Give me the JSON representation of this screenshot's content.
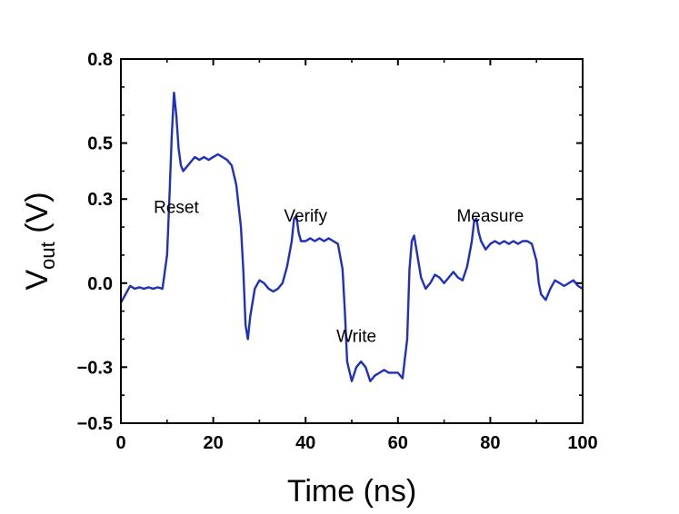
{
  "chart_data": {
    "type": "line",
    "title": "",
    "xlabel": "Time (ns)",
    "ylabel": {
      "main": "V",
      "subscript": "out",
      "unit": " (V)"
    },
    "xlim": [
      0,
      100
    ],
    "ylim": [
      -0.5,
      0.8
    ],
    "grid": false,
    "legend": "none",
    "x_ticks": [
      {
        "value": 0,
        "label": "0"
      },
      {
        "value": 20,
        "label": "20"
      },
      {
        "value": 40,
        "label": "40"
      },
      {
        "value": 60,
        "label": "60"
      },
      {
        "value": 80,
        "label": "80"
      },
      {
        "value": 100,
        "label": "100"
      }
    ],
    "y_ticks": [
      {
        "value": 0.8,
        "label": "0.8"
      },
      {
        "value": 0.5,
        "label": "0.5"
      },
      {
        "value": 0.3,
        "label": "0.3"
      },
      {
        "value": 0.0,
        "label": "0.0"
      },
      {
        "value": -0.3,
        "label": "−0.3"
      },
      {
        "value": -0.5,
        "label": "−0.5"
      }
    ],
    "annotations": [
      {
        "text": "Reset",
        "x": 12,
        "y": 0.25
      },
      {
        "text": "Verify",
        "x": 40,
        "y": 0.22
      },
      {
        "text": "Write",
        "x": 51,
        "y": -0.21
      },
      {
        "text": "Measure",
        "x": 80,
        "y": 0.22
      }
    ],
    "series": [
      {
        "color": "#1f2fbf",
        "points": [
          [
            0,
            -0.07
          ],
          [
            1,
            -0.04
          ],
          [
            2,
            -0.01
          ],
          [
            3,
            -0.02
          ],
          [
            4,
            -0.015
          ],
          [
            5,
            -0.02
          ],
          [
            6,
            -0.015
          ],
          [
            7,
            -0.02
          ],
          [
            8,
            -0.015
          ],
          [
            9,
            -0.02
          ],
          [
            10,
            0.1
          ],
          [
            10.5,
            0.3
          ],
          [
            11,
            0.52
          ],
          [
            11.5,
            0.68
          ],
          [
            12,
            0.6
          ],
          [
            12.5,
            0.48
          ],
          [
            13,
            0.42
          ],
          [
            13.5,
            0.4
          ],
          [
            14,
            0.41
          ],
          [
            15,
            0.43
          ],
          [
            16,
            0.45
          ],
          [
            17,
            0.44
          ],
          [
            18,
            0.45
          ],
          [
            19,
            0.44
          ],
          [
            20,
            0.45
          ],
          [
            21,
            0.46
          ],
          [
            22,
            0.45
          ],
          [
            23,
            0.44
          ],
          [
            24,
            0.42
          ],
          [
            25,
            0.35
          ],
          [
            26,
            0.2
          ],
          [
            26.5,
            0.05
          ],
          [
            27,
            -0.15
          ],
          [
            27.5,
            -0.2
          ],
          [
            28,
            -0.12
          ],
          [
            29,
            -0.02
          ],
          [
            30,
            0.01
          ],
          [
            31,
            0.0
          ],
          [
            32,
            -0.02
          ],
          [
            33,
            -0.03
          ],
          [
            34,
            -0.02
          ],
          [
            35,
            0.0
          ],
          [
            36,
            0.06
          ],
          [
            37,
            0.15
          ],
          [
            37.5,
            0.23
          ],
          [
            38,
            0.24
          ],
          [
            38.5,
            0.18
          ],
          [
            39,
            0.15
          ],
          [
            40,
            0.15
          ],
          [
            41,
            0.16
          ],
          [
            42,
            0.15
          ],
          [
            43,
            0.16
          ],
          [
            44,
            0.15
          ],
          [
            45,
            0.16
          ],
          [
            46,
            0.15
          ],
          [
            47,
            0.14
          ],
          [
            48,
            0.05
          ],
          [
            48.5,
            -0.1
          ],
          [
            49,
            -0.28
          ],
          [
            50,
            -0.35
          ],
          [
            51,
            -0.3
          ],
          [
            52,
            -0.28
          ],
          [
            53,
            -0.3
          ],
          [
            54,
            -0.35
          ],
          [
            55,
            -0.33
          ],
          [
            56,
            -0.32
          ],
          [
            57,
            -0.31
          ],
          [
            58,
            -0.32
          ],
          [
            59,
            -0.32
          ],
          [
            60,
            -0.32
          ],
          [
            61,
            -0.34
          ],
          [
            62,
            -0.2
          ],
          [
            62.5,
            0.05
          ],
          [
            63,
            0.15
          ],
          [
            63.5,
            0.17
          ],
          [
            64,
            0.12
          ],
          [
            65,
            0.02
          ],
          [
            66,
            -0.02
          ],
          [
            67,
            0.0
          ],
          [
            68,
            0.03
          ],
          [
            69,
            0.02
          ],
          [
            70,
            0.0
          ],
          [
            71,
            0.02
          ],
          [
            72,
            0.04
          ],
          [
            73,
            0.02
          ],
          [
            74,
            0.01
          ],
          [
            75,
            0.06
          ],
          [
            76,
            0.15
          ],
          [
            76.5,
            0.22
          ],
          [
            77,
            0.23
          ],
          [
            77.5,
            0.18
          ],
          [
            78,
            0.15
          ],
          [
            79,
            0.12
          ],
          [
            80,
            0.14
          ],
          [
            81,
            0.15
          ],
          [
            82,
            0.14
          ],
          [
            83,
            0.15
          ],
          [
            84,
            0.14
          ],
          [
            85,
            0.15
          ],
          [
            86,
            0.14
          ],
          [
            87,
            0.15
          ],
          [
            88,
            0.15
          ],
          [
            89,
            0.14
          ],
          [
            90,
            0.08
          ],
          [
            90.5,
            0.0
          ],
          [
            91,
            -0.04
          ],
          [
            92,
            -0.06
          ],
          [
            93,
            -0.02
          ],
          [
            94,
            0.01
          ],
          [
            95,
            0.0
          ],
          [
            96,
            -0.01
          ],
          [
            97,
            0.0
          ],
          [
            98,
            0.01
          ],
          [
            99,
            -0.01
          ],
          [
            100,
            -0.02
          ]
        ]
      }
    ]
  }
}
